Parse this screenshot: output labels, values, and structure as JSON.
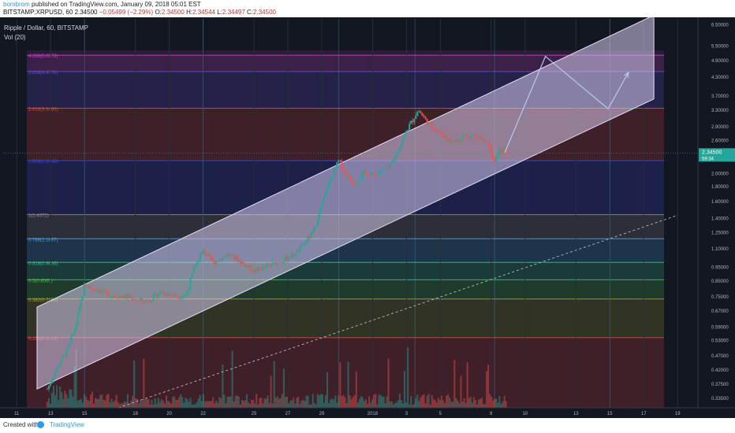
{
  "header": {
    "user": "bombrom",
    "published": "published on TradingView.com, January 09, 2018 05:01 EST",
    "symbol_line": "BITSTAMP:XRPUSD, 60",
    "last": "2.34500",
    "change": "−0.05499 (−2.29%)",
    "o_label": "O:",
    "o": "2.34500",
    "h_label": "H:",
    "h": "2.34544",
    "l_label": "L:",
    "l": "2.34497",
    "c_label": "C:",
    "c": "2.34500"
  },
  "footer": {
    "created_with": "Created with",
    "brand": "TradingView"
  },
  "colors": {
    "bg": "#131722",
    "up": "#26a69a",
    "down": "#ef5350",
    "channel": "#d8ccf0",
    "grid": "#2a2e39"
  },
  "chart_data": {
    "type": "candlestick",
    "title": "Ripple / Dollar, 60, BITSTAMP",
    "indicator": "Vol (20)",
    "scale": "log",
    "ylim": [
      0.31,
      6.8
    ],
    "price_ticks": [
      "6.50000",
      "5.50000",
      "4.90000",
      "4.30000",
      "3.70000",
      "3.30000",
      "2.90000",
      "2.60000",
      "2.00000",
      "1.80000",
      "1.60000",
      "1.40000",
      "1.25000",
      "1.10000",
      "0.95000",
      "0.85000",
      "0.75000",
      "0.67000",
      "0.59000",
      "0.53000",
      "0.47000",
      "0.42000",
      "0.37500",
      "0.33500"
    ],
    "price_tick_values": [
      6.5,
      5.5,
      4.9,
      4.3,
      3.7,
      3.3,
      2.9,
      2.6,
      2.0,
      1.8,
      1.6,
      1.4,
      1.25,
      1.1,
      0.95,
      0.85,
      0.75,
      0.67,
      0.59,
      0.53,
      0.47,
      0.42,
      0.375,
      0.335
    ],
    "last_price_label": "2.34500",
    "last_price_sub": "59:34",
    "x_ticks": [
      {
        "label": "11",
        "day": 11
      },
      {
        "label": "13",
        "day": 13
      },
      {
        "label": "15",
        "day": 15
      },
      {
        "label": "18",
        "day": 18
      },
      {
        "label": "20",
        "day": 20
      },
      {
        "label": "22",
        "day": 22
      },
      {
        "label": "25",
        "day": 25
      },
      {
        "label": "27",
        "day": 27
      },
      {
        "label": "29",
        "day": 29
      },
      {
        "label": "2018",
        "day": 32
      },
      {
        "label": "3",
        "day": 34
      },
      {
        "label": "5",
        "day": 36
      },
      {
        "label": "8",
        "day": 39
      },
      {
        "label": "10",
        "day": 41
      },
      {
        "label": "13",
        "day": 44
      },
      {
        "label": "15",
        "day": 46
      },
      {
        "label": "17",
        "day": 48
      },
      {
        "label": "19",
        "day": 50
      }
    ],
    "fib_levels": [
      {
        "label": "4.236(5.0973)",
        "value": 5.0973,
        "color": "#cc44cc"
      },
      {
        "label": "3.618(4.4776)",
        "value": 4.4776,
        "color": "#6a4cd6"
      },
      {
        "label": "2.618(3.3460)",
        "value": 3.346,
        "color": "#e04646"
      },
      {
        "label": "1.618(2.2046)",
        "value": 2.2046,
        "color": "#3a49d8"
      },
      {
        "label": "1(1.4372)",
        "value": 1.4372,
        "color": "#8a8a8a"
      },
      {
        "label": "0.786(1.1867)",
        "value": 1.1867,
        "color": "#4aa0e0"
      },
      {
        "label": "0.618(0.9836)",
        "value": 0.9836,
        "color": "#3ac08a"
      },
      {
        "label": "0.5(0.8565)",
        "value": 0.8565,
        "color": "#4cc04c"
      },
      {
        "label": "0.382(0.7356)",
        "value": 0.7356,
        "color": "#a0a030"
      },
      {
        "label": "0.236(0.5413)",
        "value": 0.5413,
        "color": "#e04646"
      }
    ],
    "channel": {
      "lower_start": {
        "day": 12.2,
        "price": 0.36
      },
      "lower_end": {
        "day": 48.6,
        "price": 3.6
      },
      "upper_start": {
        "day": 12.2,
        "price": 0.69
      },
      "upper_end": {
        "day": 48.6,
        "price": 7.0
      }
    },
    "projection": [
      {
        "day": 39.8,
        "price": 2.35
      },
      {
        "day": 42.2,
        "price": 5.05
      },
      {
        "day": 45.9,
        "price": 3.33
      },
      {
        "day": 47.1,
        "price": 4.45
      }
    ],
    "trend_dashed": [
      {
        "day": 17.0,
        "price": 0.31
      },
      {
        "day": 50.0,
        "price": 1.43
      }
    ],
    "price_path": [
      {
        "day": 12.8,
        "price": 0.36
      },
      {
        "day": 13.5,
        "price": 0.44
      },
      {
        "day": 14.0,
        "price": 0.49
      },
      {
        "day": 14.5,
        "price": 0.6
      },
      {
        "day": 15.0,
        "price": 0.82
      },
      {
        "day": 15.5,
        "price": 0.8
      },
      {
        "day": 16.5,
        "price": 0.76
      },
      {
        "day": 17.5,
        "price": 0.75
      },
      {
        "day": 18.5,
        "price": 0.72
      },
      {
        "day": 19.0,
        "price": 0.74
      },
      {
        "day": 19.5,
        "price": 0.78
      },
      {
        "day": 20.5,
        "price": 0.75
      },
      {
        "day": 21.0,
        "price": 0.76
      },
      {
        "day": 21.5,
        "price": 0.95
      },
      {
        "day": 22.0,
        "price": 1.08
      },
      {
        "day": 22.6,
        "price": 0.98
      },
      {
        "day": 23.5,
        "price": 1.05
      },
      {
        "day": 24.3,
        "price": 0.98
      },
      {
        "day": 25.0,
        "price": 0.92
      },
      {
        "day": 26.0,
        "price": 0.96
      },
      {
        "day": 27.0,
        "price": 1.02
      },
      {
        "day": 27.5,
        "price": 1.06
      },
      {
        "day": 28.0,
        "price": 1.15
      },
      {
        "day": 28.5,
        "price": 1.25
      },
      {
        "day": 29.0,
        "price": 1.55
      },
      {
        "day": 29.5,
        "price": 1.9
      },
      {
        "day": 30.0,
        "price": 2.2
      },
      {
        "day": 30.5,
        "price": 1.95
      },
      {
        "day": 31.0,
        "price": 1.85
      },
      {
        "day": 31.5,
        "price": 2.0
      },
      {
        "day": 32.0,
        "price": 1.96
      },
      {
        "day": 33.0,
        "price": 2.08
      },
      {
        "day": 33.5,
        "price": 2.4
      },
      {
        "day": 34.0,
        "price": 2.8
      },
      {
        "day": 34.7,
        "price": 3.3
      },
      {
        "day": 35.3,
        "price": 2.95
      },
      {
        "day": 36.0,
        "price": 2.75
      },
      {
        "day": 36.7,
        "price": 2.55
      },
      {
        "day": 37.5,
        "price": 2.7
      },
      {
        "day": 38.3,
        "price": 2.65
      },
      {
        "day": 38.9,
        "price": 2.45
      },
      {
        "day": 39.2,
        "price": 2.15
      },
      {
        "day": 39.5,
        "price": 2.4
      },
      {
        "day": 39.9,
        "price": 2.35
      }
    ]
  }
}
